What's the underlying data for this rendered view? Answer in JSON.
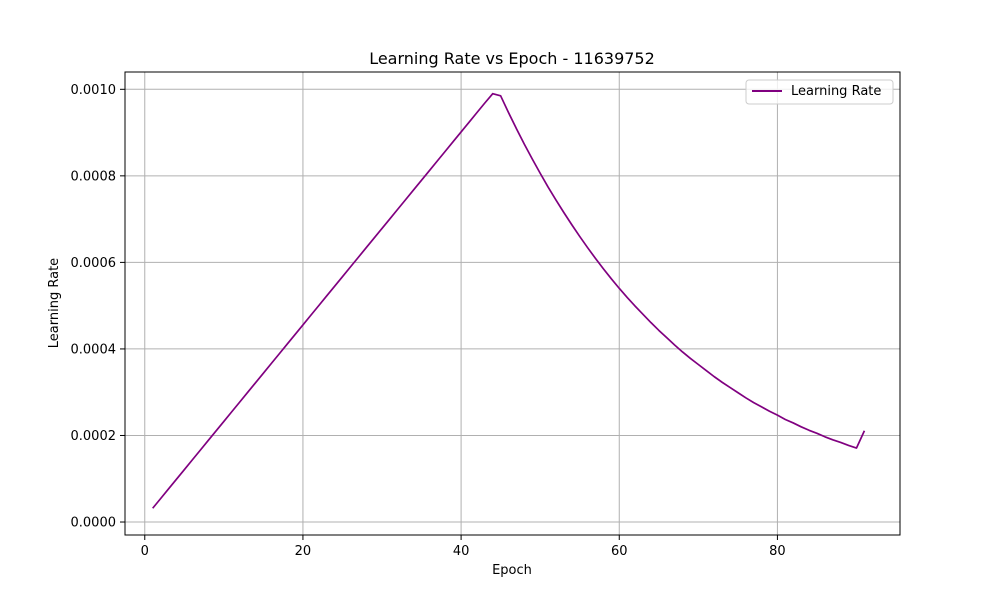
{
  "chart_data": {
    "type": "line",
    "title": "Learning Rate vs Epoch - 11639752",
    "xlabel": "Epoch",
    "ylabel": "Learning Rate",
    "xlim": [
      -2.5,
      95.5
    ],
    "ylim": [
      -3e-05,
      0.00104
    ],
    "x_ticks": [
      0,
      20,
      40,
      60,
      80
    ],
    "x_tick_labels": [
      "0",
      "20",
      "40",
      "60",
      "80"
    ],
    "y_ticks": [
      0.0,
      0.0002,
      0.0004,
      0.0006,
      0.0008,
      0.001
    ],
    "y_tick_labels": [
      "0.0000",
      "0.0002",
      "0.0004",
      "0.0006",
      "0.0008",
      "0.0010"
    ],
    "grid": true,
    "legend_position": "top-right",
    "colors": {
      "line": "#800080",
      "grid": "#b0b0b0",
      "axes": "#000000"
    },
    "series": [
      {
        "name": "Learning Rate",
        "x": [
          1,
          2,
          3,
          4,
          5,
          6,
          7,
          8,
          9,
          10,
          11,
          12,
          13,
          14,
          15,
          16,
          17,
          18,
          19,
          20,
          21,
          22,
          23,
          24,
          25,
          26,
          27,
          28,
          29,
          30,
          31,
          32,
          33,
          34,
          35,
          36,
          37,
          38,
          39,
          40,
          41,
          42,
          43,
          44,
          45,
          46,
          47,
          48,
          49,
          50,
          51,
          52,
          53,
          54,
          55,
          56,
          57,
          58,
          59,
          60,
          61,
          62,
          63,
          64,
          65,
          66,
          67,
          68,
          69,
          70,
          71,
          72,
          73,
          74,
          75,
          76,
          77,
          78,
          79,
          80,
          81,
          82,
          83,
          84,
          85,
          86,
          87,
          88,
          89,
          90,
          91
        ],
        "y": [
          3.18e-05,
          5.41e-05,
          7.64e-05,
          9.87e-05,
          0.000121,
          0.0001433,
          0.0001656,
          0.0001879,
          0.0002102,
          0.0002325,
          0.0002548,
          0.0002771,
          0.0002994,
          0.0003217,
          0.000344,
          0.0003663,
          0.0003886,
          0.0004109,
          0.0004332,
          0.0004555,
          0.0004778,
          0.0005001,
          0.0005224,
          0.0005447,
          0.000567,
          0.0005893,
          0.0006116,
          0.0006339,
          0.0006562,
          0.0006785,
          0.0007008,
          0.0007231,
          0.0007454,
          0.0007677,
          0.00079,
          0.0008123,
          0.0008346,
          0.0008569,
          0.0008792,
          0.0009015,
          0.0009238,
          0.0009461,
          0.0009684,
          0.00099,
          0.000985,
          0.000946,
          0.000909,
          0.000873,
          0.000839,
          0.000806,
          0.000774,
          0.000744,
          0.000715,
          0.000687,
          0.00066,
          0.000634,
          0.000609,
          0.000585,
          0.000562,
          0.00054,
          0.000519,
          0.000499,
          0.00048,
          0.000461,
          0.000443,
          0.000426,
          0.000409,
          0.000393,
          0.000378,
          0.000364,
          0.00035,
          0.000336,
          0.000323,
          0.000311,
          0.000299,
          0.000287,
          0.000276,
          0.000266,
          0.000256,
          0.000247,
          0.000237,
          0.000229,
          0.00022,
          0.000212,
          0.000205,
          0.000197,
          0.00019,
          0.000184,
          0.000177,
          0.000171,
          0.000211
        ]
      }
    ]
  }
}
